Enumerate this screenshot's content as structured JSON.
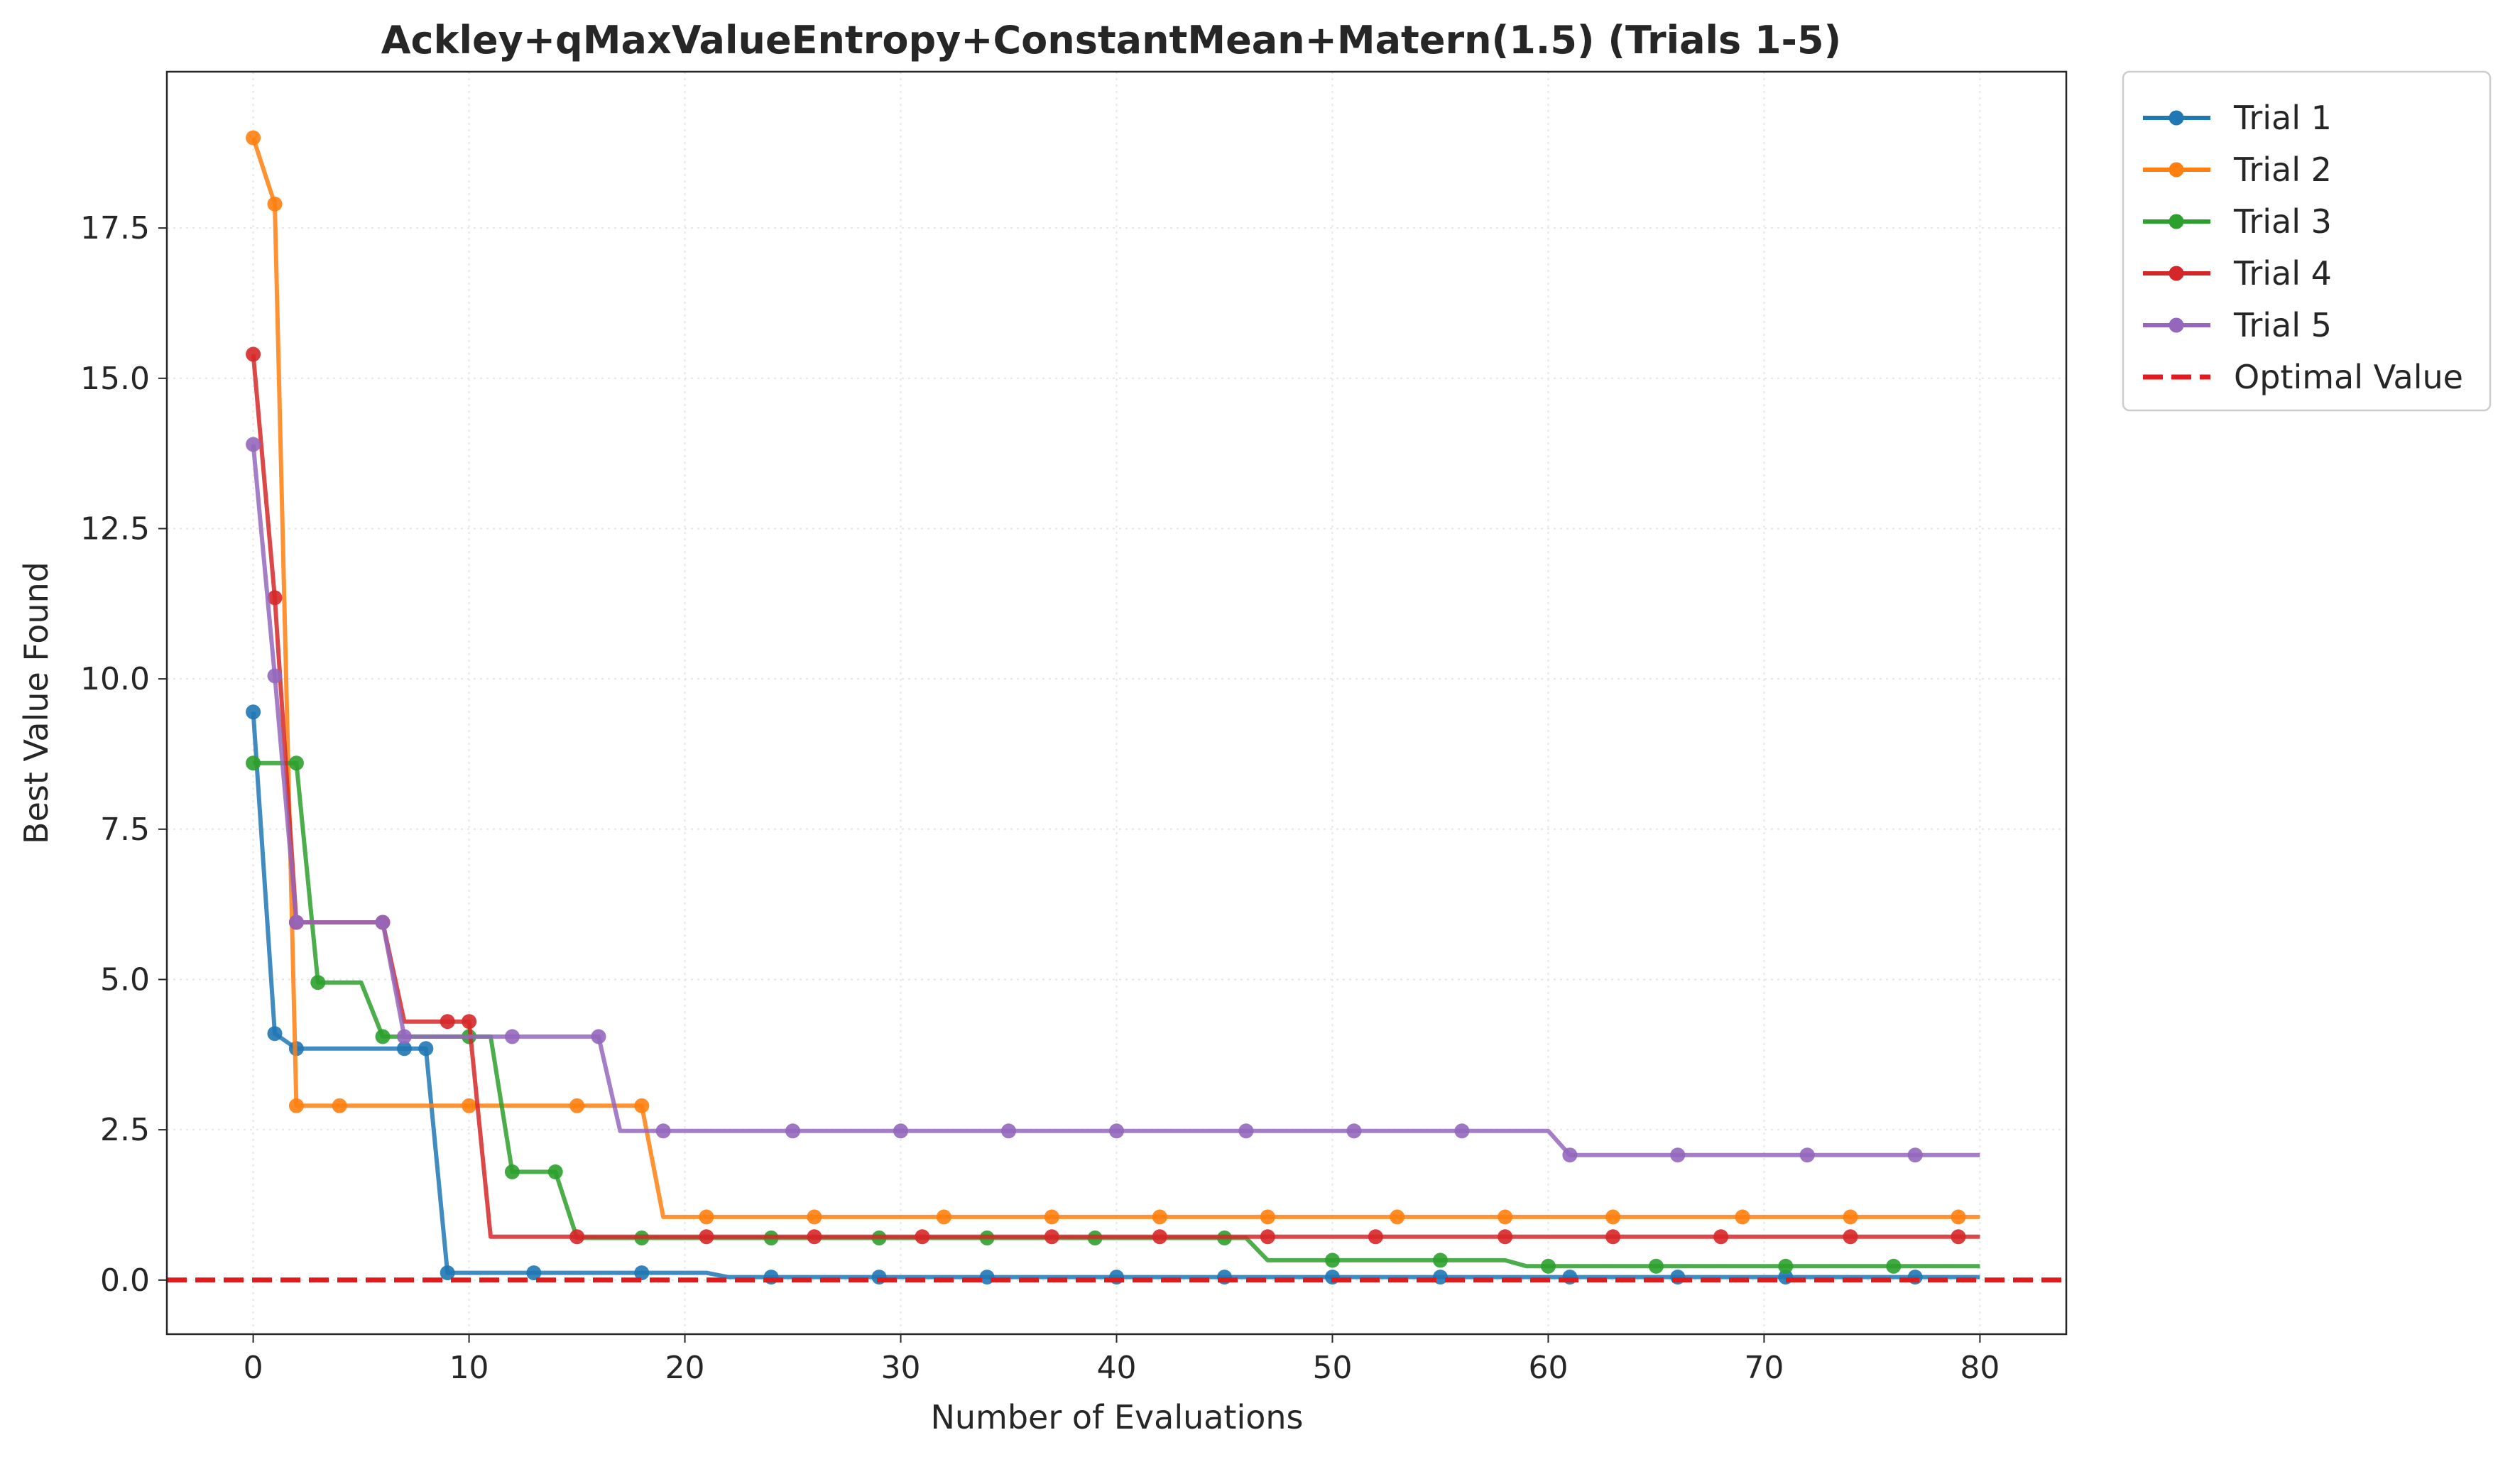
{
  "chart_data": {
    "type": "line",
    "title": "Ackley+qMaxValueEntropy+ConstantMean+Matern(1.5) (Trials 1-5)",
    "xlabel": "Number of Evaluations",
    "ylabel": "Best Value Found",
    "xlim": [
      -4,
      84
    ],
    "ylim": [
      -0.9,
      20.1
    ],
    "x_ticks": [
      0,
      10,
      20,
      30,
      40,
      50,
      60,
      70,
      80
    ],
    "y_ticks": [
      0.0,
      2.5,
      5.0,
      7.5,
      10.0,
      12.5,
      15.0,
      17.5
    ],
    "x_tick_labels": [
      "0",
      "10",
      "20",
      "30",
      "40",
      "50",
      "60",
      "70",
      "80"
    ],
    "y_tick_labels": [
      "0.0",
      "2.5",
      "5.0",
      "7.5",
      "10.0",
      "12.5",
      "15.0",
      "17.5"
    ],
    "grid": true,
    "legend_placement": "outside-top-right",
    "series": [
      {
        "name": "Trial 1",
        "color": "#1f77b4",
        "line": [
          [
            0,
            9.45
          ],
          [
            1,
            4.1
          ],
          [
            2,
            3.85
          ],
          [
            8,
            3.85
          ],
          [
            9,
            0.12
          ],
          [
            21,
            0.12
          ],
          [
            22,
            0.05
          ],
          [
            80,
            0.05
          ]
        ],
        "markers": [
          [
            0,
            9.45
          ],
          [
            1,
            4.1
          ],
          [
            2,
            3.85
          ],
          [
            7,
            3.85
          ],
          [
            8,
            3.85
          ],
          [
            9,
            0.12
          ],
          [
            13,
            0.12
          ],
          [
            18,
            0.12
          ],
          [
            24,
            0.05
          ],
          [
            29,
            0.05
          ],
          [
            34,
            0.05
          ],
          [
            40,
            0.05
          ],
          [
            45,
            0.05
          ],
          [
            50,
            0.05
          ],
          [
            55,
            0.05
          ],
          [
            61,
            0.05
          ],
          [
            66,
            0.05
          ],
          [
            71,
            0.05
          ],
          [
            77,
            0.05
          ]
        ]
      },
      {
        "name": "Trial 2",
        "color": "#ff7f0e",
        "line": [
          [
            0,
            19.0
          ],
          [
            1,
            17.9
          ],
          [
            2,
            2.9
          ],
          [
            18,
            2.9
          ],
          [
            19,
            1.05
          ],
          [
            80,
            1.05
          ]
        ],
        "markers": [
          [
            0,
            19.0
          ],
          [
            1,
            17.9
          ],
          [
            2,
            2.9
          ],
          [
            4,
            2.9
          ],
          [
            10,
            2.9
          ],
          [
            15,
            2.9
          ],
          [
            18,
            2.9
          ],
          [
            21,
            1.05
          ],
          [
            26,
            1.05
          ],
          [
            32,
            1.05
          ],
          [
            37,
            1.05
          ],
          [
            42,
            1.05
          ],
          [
            47,
            1.05
          ],
          [
            53,
            1.05
          ],
          [
            58,
            1.05
          ],
          [
            63,
            1.05
          ],
          [
            69,
            1.05
          ],
          [
            74,
            1.05
          ],
          [
            79,
            1.05
          ]
        ]
      },
      {
        "name": "Trial 3",
        "color": "#2ca02c",
        "line": [
          [
            0,
            8.6
          ],
          [
            2,
            8.6
          ],
          [
            3,
            4.95
          ],
          [
            5,
            4.95
          ],
          [
            6,
            4.05
          ],
          [
            11,
            4.05
          ],
          [
            12,
            1.8
          ],
          [
            14,
            1.8
          ],
          [
            15,
            0.7
          ],
          [
            46,
            0.7
          ],
          [
            47,
            0.33
          ],
          [
            58,
            0.33
          ],
          [
            59,
            0.23
          ],
          [
            80,
            0.23
          ]
        ],
        "markers": [
          [
            0,
            8.6
          ],
          [
            2,
            8.6
          ],
          [
            3,
            4.95
          ],
          [
            6,
            4.05
          ],
          [
            10,
            4.05
          ],
          [
            12,
            1.8
          ],
          [
            14,
            1.8
          ],
          [
            18,
            0.7
          ],
          [
            24,
            0.7
          ],
          [
            29,
            0.7
          ],
          [
            34,
            0.7
          ],
          [
            39,
            0.7
          ],
          [
            45,
            0.7
          ],
          [
            50,
            0.33
          ],
          [
            55,
            0.33
          ],
          [
            60,
            0.23
          ],
          [
            65,
            0.23
          ],
          [
            71,
            0.23
          ],
          [
            76,
            0.23
          ]
        ]
      },
      {
        "name": "Trial 4",
        "color": "#d62728",
        "line": [
          [
            0,
            15.4
          ],
          [
            1,
            11.35
          ],
          [
            2,
            5.95
          ],
          [
            6,
            5.95
          ],
          [
            7,
            4.3
          ],
          [
            10,
            4.3
          ],
          [
            11,
            0.72
          ],
          [
            80,
            0.72
          ]
        ],
        "markers": [
          [
            0,
            15.4
          ],
          [
            1,
            11.35
          ],
          [
            2,
            5.95
          ],
          [
            6,
            5.95
          ],
          [
            9,
            4.3
          ],
          [
            10,
            4.3
          ],
          [
            15,
            0.72
          ],
          [
            21,
            0.72
          ],
          [
            26,
            0.72
          ],
          [
            31,
            0.72
          ],
          [
            37,
            0.72
          ],
          [
            42,
            0.72
          ],
          [
            47,
            0.72
          ],
          [
            52,
            0.72
          ],
          [
            58,
            0.72
          ],
          [
            63,
            0.72
          ],
          [
            68,
            0.72
          ],
          [
            74,
            0.72
          ],
          [
            79,
            0.72
          ]
        ]
      },
      {
        "name": "Trial 5",
        "color": "#9467bd",
        "line": [
          [
            0,
            13.9
          ],
          [
            1,
            10.05
          ],
          [
            2,
            5.95
          ],
          [
            6,
            5.95
          ],
          [
            7,
            4.05
          ],
          [
            16,
            4.05
          ],
          [
            17,
            2.48
          ],
          [
            60,
            2.48
          ],
          [
            61,
            2.08
          ],
          [
            80,
            2.08
          ]
        ],
        "markers": [
          [
            0,
            13.9
          ],
          [
            1,
            10.05
          ],
          [
            2,
            5.95
          ],
          [
            6,
            5.95
          ],
          [
            7,
            4.05
          ],
          [
            12,
            4.05
          ],
          [
            16,
            4.05
          ],
          [
            19,
            2.48
          ],
          [
            25,
            2.48
          ],
          [
            30,
            2.48
          ],
          [
            35,
            2.48
          ],
          [
            40,
            2.48
          ],
          [
            46,
            2.48
          ],
          [
            51,
            2.48
          ],
          [
            56,
            2.48
          ],
          [
            61,
            2.08
          ],
          [
            66,
            2.08
          ],
          [
            72,
            2.08
          ],
          [
            77,
            2.08
          ]
        ]
      }
    ],
    "reference_line": {
      "name": "Optimal Value",
      "y": 0.0,
      "color": "#e31a1c",
      "style": "dashed"
    }
  }
}
